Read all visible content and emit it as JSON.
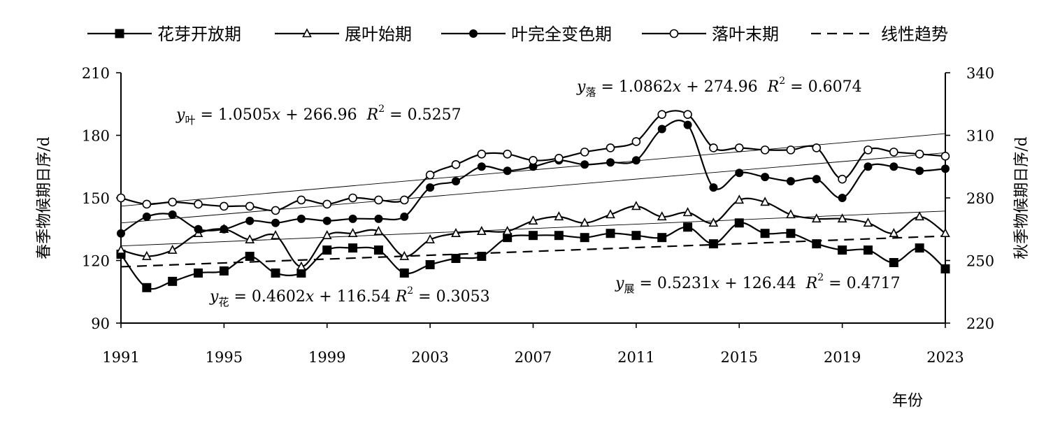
{
  "chart_data": {
    "type": "line",
    "xlabel": "年份",
    "ylabel_left": "春季物候期日序/d",
    "ylabel_right": "秋季物候期日序/d",
    "x": [
      1991,
      1992,
      1993,
      1994,
      1995,
      1996,
      1997,
      1998,
      1999,
      2000,
      2001,
      2002,
      2003,
      2004,
      2005,
      2006,
      2007,
      2008,
      2009,
      2010,
      2011,
      2012,
      2013,
      2014,
      2015,
      2016,
      2017,
      2018,
      2019,
      2020,
      2021,
      2022,
      2023
    ],
    "xlim": [
      1991,
      2023
    ],
    "x_ticks": [
      1991,
      1995,
      1999,
      2003,
      2007,
      2011,
      2015,
      2019,
      2023
    ],
    "y_left_lim": [
      90,
      210
    ],
    "y_left_ticks": [
      90,
      120,
      150,
      180,
      210
    ],
    "y_right_lim": [
      220,
      340
    ],
    "y_right_ticks": [
      220,
      250,
      280,
      310,
      340
    ],
    "grid": false,
    "legend_position": "top",
    "legend": [
      "花芽开放期",
      "展叶始期",
      "叶完全变色期",
      "落叶末期",
      "线性趋势"
    ],
    "series": [
      {
        "name": "花芽开放期",
        "axis": "left",
        "marker": "square-filled",
        "values": [
          123,
          107,
          110,
          114,
          115,
          122,
          114,
          114,
          125,
          126,
          125,
          114,
          118,
          121,
          122,
          131,
          132,
          132,
          131,
          133,
          132,
          131,
          136,
          128,
          138,
          133,
          133,
          128,
          125,
          125,
          119,
          126,
          116
        ],
        "trend": {
          "slope": 0.4602,
          "intercept": 116.54
        }
      },
      {
        "name": "展叶始期",
        "axis": "left",
        "marker": "triangle-open",
        "values": [
          125,
          122,
          125,
          133,
          135,
          130,
          132,
          117,
          132,
          133,
          134,
          122,
          130,
          133,
          134,
          134,
          139,
          141,
          138,
          142,
          146,
          141,
          143,
          138,
          149,
          148,
          142,
          140,
          140,
          138,
          133,
          141,
          133
        ],
        "trend": {
          "slope": 0.5231,
          "intercept": 126.44
        }
      },
      {
        "name": "叶完全变色期",
        "axis": "right",
        "marker": "circle-filled",
        "values": [
          263,
          271,
          272,
          265,
          265,
          269,
          268,
          270,
          269,
          270,
          270,
          271,
          285,
          288,
          295,
          293,
          295,
          298,
          296,
          297,
          298,
          313,
          315,
          285,
          292,
          290,
          288,
          289,
          280,
          295,
          295,
          293,
          294
        ],
        "trend": {
          "slope": 1.0505,
          "intercept": 266.96
        }
      },
      {
        "name": "落叶末期",
        "axis": "right",
        "marker": "circle-open",
        "values": [
          280,
          277,
          278,
          277,
          276,
          276,
          274,
          279,
          277,
          280,
          279,
          279,
          291,
          296,
          301,
          301,
          298,
          299,
          302,
          304,
          307,
          320,
          320,
          304,
          304,
          303,
          303,
          304,
          289,
          303,
          302,
          301,
          300
        ],
        "trend": {
          "slope": 1.0862,
          "intercept": 274.96
        }
      }
    ],
    "annotations": [
      {
        "var": "y",
        "sub": "叶",
        "rest": " = 1.0505",
        "x": "x",
        "rest2": " + 266.96  ",
        "r": "R",
        "sup": "2",
        "val": " = 0.5257"
      },
      {
        "var": "y",
        "sub": "落",
        "rest": " = 1.0862",
        "x": "x",
        "rest2": " + 274.96  ",
        "r": "R",
        "sup": "2",
        "val": " = 0.6074"
      },
      {
        "var": "y",
        "sub": "花",
        "rest": " = 0.4602",
        "x": "x",
        "rest2": " + 116.54 ",
        "r": "R",
        "sup": "2",
        "val": " = 0.3053"
      },
      {
        "var": "y",
        "sub": "展",
        "rest": " = 0.5231",
        "x": "x",
        "rest2": " + 126.44  ",
        "r": "R",
        "sup": "2",
        "val": " = 0.4717"
      }
    ]
  }
}
